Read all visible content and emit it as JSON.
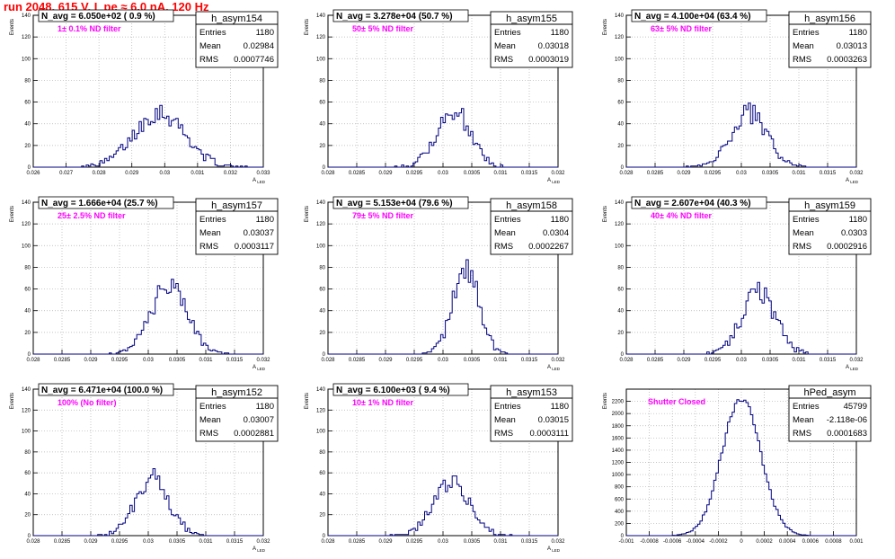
{
  "page_title": "run 2048,   615 V, I_pe ≈ 6.0 nA, 120 Hz",
  "chart_data": [
    {
      "type": "histogram",
      "name": "h_asym154",
      "navg_label": "N_avg = 6.050e+02 ( 0.9 %)",
      "filter_label": "1± 0.1% ND filter",
      "stats": {
        "entries": "1180",
        "mean": "0.02984",
        "rms": "0.0007746"
      },
      "xlim": [
        0.026,
        0.033
      ],
      "ylim": [
        0,
        140
      ],
      "xticks": [
        0.026,
        0.027,
        0.028,
        0.029,
        0.03,
        0.031,
        0.032,
        0.033
      ],
      "xtick_labels": [
        "0.026",
        "0.027",
        "0.028",
        "0.029",
        "0.03",
        "0.031",
        "0.032",
        "0.033"
      ],
      "yticks": [
        0,
        20,
        40,
        60,
        80,
        100,
        120,
        140
      ],
      "ylabel": "Events",
      "xlabel": "A_LED",
      "mu": 0.02984,
      "sigma": 0.00077,
      "peak": 51
    },
    {
      "type": "histogram",
      "name": "h_asym155",
      "navg_label": "N_avg = 3.278e+04 (50.7 %)",
      "filter_label": "50± 5% ND filter",
      "stats": {
        "entries": "1180",
        "mean": "0.03018",
        "rms": "0.0003019"
      },
      "xlim": [
        0.028,
        0.032
      ],
      "ylim": [
        0,
        140
      ],
      "xticks": [
        0.028,
        0.0285,
        0.029,
        0.0295,
        0.03,
        0.0305,
        0.031,
        0.0315,
        0.032
      ],
      "xtick_labels": [
        "0.028",
        "0.0285",
        "0.029",
        "0.0295",
        "0.03",
        "0.0305",
        "0.031",
        "0.0315",
        "0.032"
      ],
      "yticks": [
        0,
        20,
        40,
        60,
        80,
        100,
        120,
        140
      ],
      "ylabel": "Events",
      "xlabel": "A_LED",
      "mu": 0.03018,
      "sigma": 0.0003,
      "peak": 52
    },
    {
      "type": "histogram",
      "name": "h_asym156",
      "navg_label": "N_avg = 4.100e+04 (63.4 %)",
      "filter_label": "63± 5% ND filter",
      "stats": {
        "entries": "1180",
        "mean": "0.03013",
        "rms": "0.0003263"
      },
      "xlim": [
        0.028,
        0.032
      ],
      "ylim": [
        0,
        140
      ],
      "xticks": [
        0.028,
        0.0285,
        0.029,
        0.0295,
        0.03,
        0.0305,
        0.031,
        0.0315,
        0.032
      ],
      "xtick_labels": [
        "0.028",
        "0.0285",
        "0.029",
        "0.0295",
        "0.03",
        "0.0305",
        "0.031",
        "0.0315",
        "0.032"
      ],
      "yticks": [
        0,
        20,
        40,
        60,
        80,
        100,
        120,
        140
      ],
      "ylabel": "Events",
      "xlabel": "A_LED",
      "mu": 0.03013,
      "sigma": 0.00032,
      "peak": 50
    },
    {
      "type": "histogram",
      "name": "h_asym157",
      "navg_label": "N_avg = 1.666e+04 (25.7 %)",
      "filter_label": "25± 2.5% ND filter",
      "stats": {
        "entries": "1180",
        "mean": "0.03037",
        "rms": "0.0003117"
      },
      "xlim": [
        0.028,
        0.032
      ],
      "ylim": [
        0,
        140
      ],
      "xticks": [
        0.028,
        0.0285,
        0.029,
        0.0295,
        0.03,
        0.0305,
        0.031,
        0.0315,
        0.032
      ],
      "xtick_labels": [
        "0.028",
        "0.0285",
        "0.029",
        "0.0295",
        "0.03",
        "0.0305",
        "0.031",
        "0.0315",
        "0.032"
      ],
      "yticks": [
        0,
        20,
        40,
        60,
        80,
        100,
        120,
        140
      ],
      "ylabel": "Events",
      "xlabel": "A_LED",
      "mu": 0.03037,
      "sigma": 0.00031,
      "peak": 66
    },
    {
      "type": "histogram",
      "name": "h_asym158",
      "navg_label": "N_avg = 5.153e+04 (79.6 %)",
      "filter_label": "79± 5% ND filter",
      "stats": {
        "entries": "1180",
        "mean": "0.0304",
        "rms": "0.0002267"
      },
      "xlim": [
        0.028,
        0.032
      ],
      "ylim": [
        0,
        140
      ],
      "xticks": [
        0.028,
        0.0285,
        0.029,
        0.0295,
        0.03,
        0.0305,
        0.031,
        0.0315,
        0.032
      ],
      "xtick_labels": [
        "0.028",
        "0.0285",
        "0.029",
        "0.0295",
        "0.03",
        "0.0305",
        "0.031",
        "0.0315",
        "0.032"
      ],
      "yticks": [
        0,
        20,
        40,
        60,
        80,
        100,
        120,
        140
      ],
      "ylabel": "Events",
      "xlabel": "A_LED",
      "mu": 0.0304,
      "sigma": 0.00023,
      "peak": 80
    },
    {
      "type": "histogram",
      "name": "h_asym159",
      "navg_label": "N_avg = 2.607e+04 (40.3 %)",
      "filter_label": "40± 4% ND filter",
      "stats": {
        "entries": "1180",
        "mean": "0.0303",
        "rms": "0.0002916"
      },
      "xlim": [
        0.028,
        0.032
      ],
      "ylim": [
        0,
        140
      ],
      "xticks": [
        0.028,
        0.0285,
        0.029,
        0.0295,
        0.03,
        0.0305,
        0.031,
        0.0315,
        0.032
      ],
      "xtick_labels": [
        "0.028",
        "0.0285",
        "0.029",
        "0.0295",
        "0.03",
        "0.0305",
        "0.031",
        "0.0315",
        "0.032"
      ],
      "yticks": [
        0,
        20,
        40,
        60,
        80,
        100,
        120,
        140
      ],
      "ylabel": "Events",
      "xlabel": "A_LED",
      "mu": 0.0303,
      "sigma": 0.00029,
      "peak": 58
    },
    {
      "type": "histogram",
      "name": "h_asym152",
      "navg_label": "N_avg = 6.471e+04 (100.0 %)",
      "filter_label": "100% (No filter)",
      "stats": {
        "entries": "1180",
        "mean": "0.03007",
        "rms": "0.0002881"
      },
      "xlim": [
        0.028,
        0.032
      ],
      "ylim": [
        0,
        140
      ],
      "xticks": [
        0.028,
        0.0285,
        0.029,
        0.0295,
        0.03,
        0.0305,
        0.031,
        0.0315,
        0.032
      ],
      "xtick_labels": [
        "0.028",
        "0.0285",
        "0.029",
        "0.0295",
        "0.03",
        "0.0305",
        "0.031",
        "0.0315",
        "0.032"
      ],
      "yticks": [
        0,
        20,
        40,
        60,
        80,
        100,
        120,
        140
      ],
      "ylabel": "Events",
      "xlabel": "A_LED",
      "mu": 0.03007,
      "sigma": 0.00029,
      "peak": 55
    },
    {
      "type": "histogram",
      "name": "h_asym153",
      "navg_label": "N_avg = 6.100e+03 ( 9.4 %)",
      "filter_label": "10± 1% ND filter",
      "stats": {
        "entries": "1180",
        "mean": "0.03015",
        "rms": "0.0003111"
      },
      "xlim": [
        0.028,
        0.032
      ],
      "ylim": [
        0,
        140
      ],
      "xticks": [
        0.028,
        0.0285,
        0.029,
        0.0295,
        0.03,
        0.0305,
        0.031,
        0.0315,
        0.032
      ],
      "xtick_labels": [
        "0.028",
        "0.0285",
        "0.029",
        "0.0295",
        "0.03",
        "0.0305",
        "0.031",
        "0.0315",
        "0.032"
      ],
      "yticks": [
        0,
        20,
        40,
        60,
        80,
        100,
        120,
        140
      ],
      "ylabel": "Events",
      "xlabel": "A_LED",
      "mu": 0.03015,
      "sigma": 0.00031,
      "peak": 52
    },
    {
      "type": "histogram",
      "name": "hPed_asym",
      "navg_label": "",
      "filter_label": "Shutter Closed",
      "stats": {
        "entries": "45799",
        "mean": "-2.118e-06",
        "rms": "0.0001683"
      },
      "xlim": [
        -0.001,
        0.001
      ],
      "ylim": [
        0,
        2400
      ],
      "xticks": [
        -0.001,
        -0.0008,
        -0.0006,
        -0.0004,
        -0.0002,
        0,
        0.0002,
        0.0004,
        0.0006,
        0.0008,
        0.001
      ],
      "xtick_labels": [
        "-0.001",
        "-0.0008",
        "-0.0006",
        "-0.0004",
        "-0.0002",
        "0",
        "0.0002",
        "0.0004",
        "0.0006",
        "0.0008",
        "0.001"
      ],
      "yticks": [
        0,
        200,
        400,
        600,
        800,
        1000,
        1200,
        1400,
        1600,
        1800,
        2000,
        2200
      ],
      "ylabel": "Events",
      "xlabel": "",
      "mu": 0.0,
      "sigma": 0.000168,
      "peak": 2260
    }
  ],
  "stat_labels": {
    "entries": "Entries",
    "mean": "Mean",
    "rms": "RMS"
  },
  "colors": {
    "hist": "#000080",
    "grid": "#b0b0b0",
    "filter_text": "#ff00ff",
    "title_text": "#ff0000"
  }
}
